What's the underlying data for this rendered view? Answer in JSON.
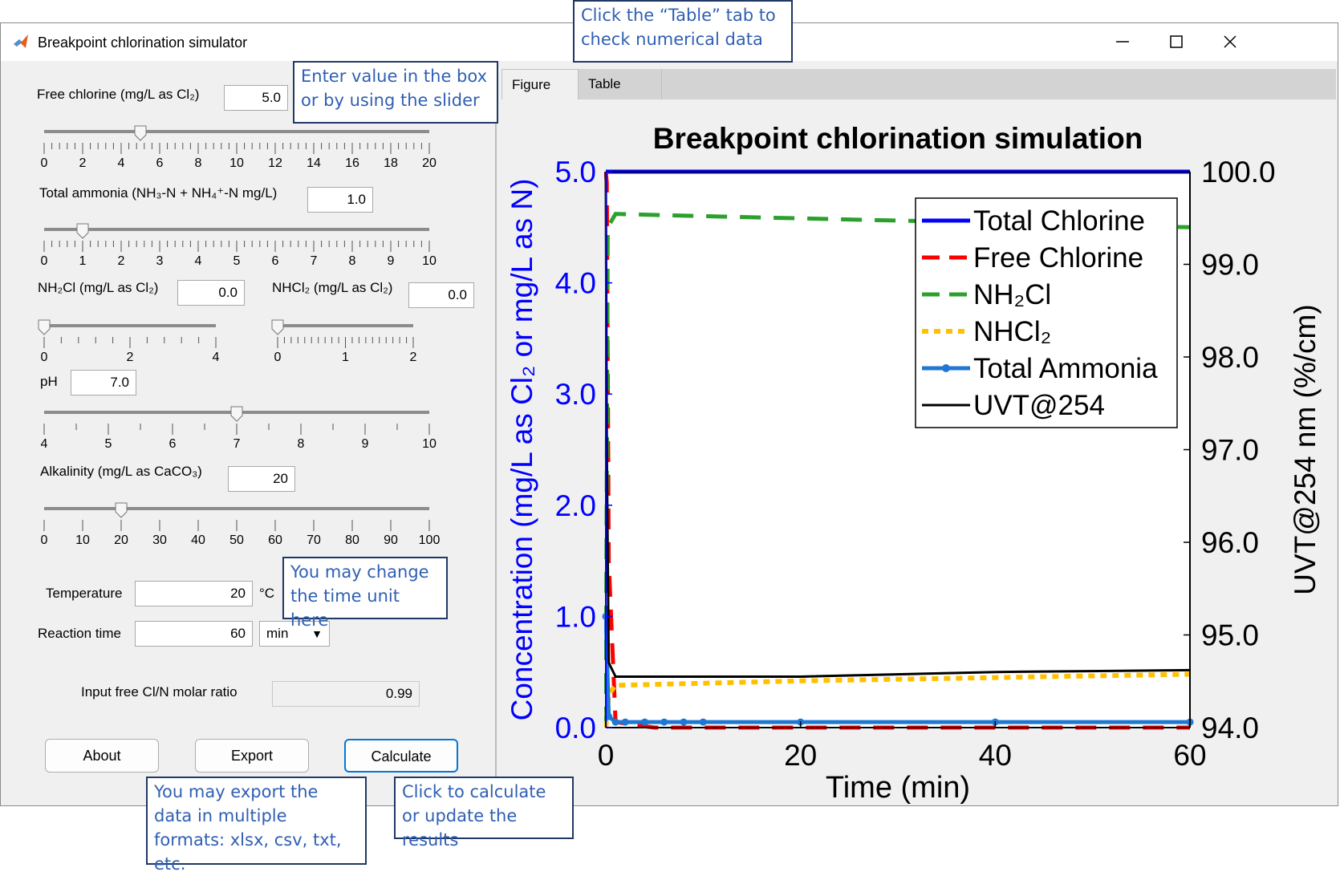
{
  "window": {
    "title": "Breakpoint chlorination simulator"
  },
  "controls": {
    "free_chlorine": {
      "label": "Free chlorine (mg/L as Cl₂)",
      "value": "5.0",
      "slider_min": 0,
      "slider_max": 20,
      "slider_value": 5,
      "ticks": [
        "0",
        "2",
        "4",
        "6",
        "8",
        "10",
        "12",
        "14",
        "16",
        "18",
        "20"
      ]
    },
    "total_ammonia": {
      "label": "Total ammonia (NH₃-N + NH₄⁺-N mg/L)",
      "value": "1.0",
      "slider_min": 0,
      "slider_max": 10,
      "slider_value": 1,
      "ticks": [
        "0",
        "1",
        "2",
        "3",
        "4",
        "5",
        "6",
        "7",
        "8",
        "9",
        "10"
      ]
    },
    "nh2cl": {
      "label": "NH₂Cl (mg/L as Cl₂)",
      "value": "0.0",
      "slider_min": 0,
      "slider_max": 4,
      "slider_value": 0,
      "ticks": [
        "0",
        "2",
        "4"
      ]
    },
    "nhcl2": {
      "label": "NHCl₂ (mg/L as Cl₂)",
      "value": "0.0",
      "slider_min": 0,
      "slider_max": 2,
      "slider_value": 0,
      "ticks": [
        "0",
        "1",
        "2"
      ]
    },
    "ph": {
      "label": "pH",
      "value": "7.0",
      "slider_min": 4,
      "slider_max": 10,
      "slider_value": 7,
      "ticks": [
        "4",
        "5",
        "6",
        "7",
        "8",
        "9",
        "10"
      ]
    },
    "alkalinity": {
      "label": "Alkalinity (mg/L as CaCO₃)",
      "value": "20",
      "slider_min": 0,
      "slider_max": 100,
      "slider_value": 20,
      "ticks": [
        "0",
        "10",
        "20",
        "30",
        "40",
        "50",
        "60",
        "70",
        "80",
        "90",
        "100"
      ]
    },
    "temperature": {
      "label": "Temperature",
      "value": "20",
      "unit": "°C"
    },
    "reaction_time": {
      "label": "Reaction time",
      "value": "60",
      "unit_selected": "min"
    },
    "molar_ratio": {
      "label": "Input free Cl/N molar ratio",
      "value": "0.99"
    }
  },
  "buttons": {
    "about": "About",
    "export": "Export",
    "calculate": "Calculate"
  },
  "tabs": {
    "figure": "Figure",
    "table": "Table"
  },
  "callouts": {
    "table_tab": "Click the “Table” tab to check numerical data",
    "slider": "Enter value in the box or by using the slider",
    "time_unit": "You may change the time unit here",
    "export": "You may export the data in multiple formats: xlsx, csv, txt, etc.",
    "calculate": "Click to calculate or update the results"
  },
  "chart_data": {
    "type": "line",
    "title": "Breakpoint chlorination simulation",
    "xlabel": "Time (min)",
    "ylabel": "Concentration (mg/L as Cl₂ or mg/L as N)",
    "y2label": "UVT@254 nm (%/cm)",
    "xlim": [
      0,
      60
    ],
    "ylim": [
      0,
      5
    ],
    "y2lim": [
      94,
      100
    ],
    "xticks": [
      "0",
      "20",
      "40",
      "60"
    ],
    "yticks": [
      "0.0",
      "1.0",
      "2.0",
      "3.0",
      "4.0",
      "5.0"
    ],
    "y2ticks": [
      "94.0",
      "95.0",
      "96.0",
      "97.0",
      "98.0",
      "99.0",
      "100.0"
    ],
    "legend_position": "top-right",
    "colors": {
      "left_axis": "#0000ff",
      "right_axis": "#000000"
    },
    "series": [
      {
        "name": "Total Chlorine",
        "axis": "left",
        "color": "#0000ff",
        "style": "solid",
        "x": [
          0,
          0.1,
          60
        ],
        "y": [
          5.0,
          5.0,
          5.0
        ]
      },
      {
        "name": "Free Chlorine",
        "axis": "left",
        "color": "#ff0000",
        "style": "dashed",
        "x": [
          0,
          0.1,
          0.3,
          1,
          5,
          60
        ],
        "y": [
          5.0,
          4.9,
          1.5,
          0.05,
          0.0,
          0.0
        ]
      },
      {
        "name": "NH₂Cl",
        "axis": "left",
        "color": "#2ca02c",
        "style": "dashed",
        "x": [
          0,
          0.2,
          1,
          10,
          30,
          60
        ],
        "y": [
          0.0,
          4.5,
          4.62,
          4.6,
          4.56,
          4.5
        ]
      },
      {
        "name": "NHCl₂",
        "axis": "left",
        "color": "#ffc000",
        "style": "dotted",
        "x": [
          0,
          0.3,
          1,
          20,
          40,
          60
        ],
        "y": [
          0.0,
          0.3,
          0.38,
          0.42,
          0.45,
          0.48
        ]
      },
      {
        "name": "Total Ammonia",
        "axis": "left",
        "color": "#1f77d4",
        "style": "solid-marker",
        "x": [
          0,
          0.3,
          1,
          2,
          4,
          6,
          8,
          10,
          20,
          40,
          60
        ],
        "y": [
          1.0,
          0.1,
          0.05,
          0.05,
          0.05,
          0.05,
          0.05,
          0.05,
          0.05,
          0.05,
          0.05
        ]
      },
      {
        "name": "UVT@254",
        "axis": "right",
        "color": "#000000",
        "style": "solid",
        "x": [
          0,
          0.1,
          0.3,
          1,
          20,
          40,
          60
        ],
        "y": [
          100.0,
          97.0,
          94.7,
          94.55,
          94.55,
          94.6,
          94.62
        ]
      }
    ]
  }
}
